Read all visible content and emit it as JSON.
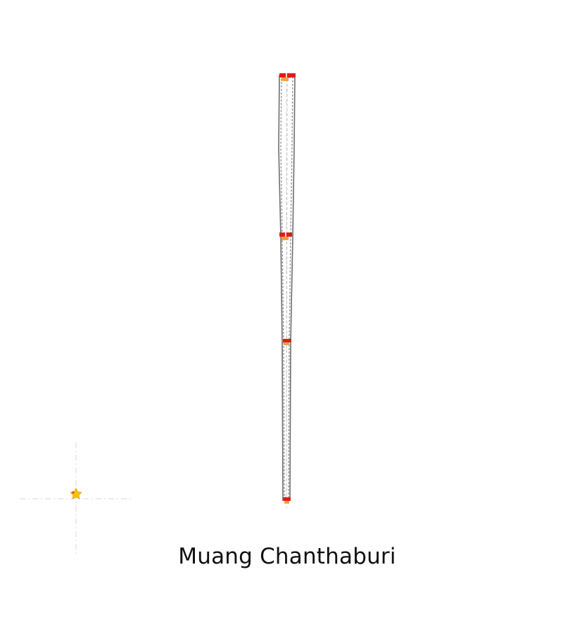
{
  "map": {
    "place_name": "Muang Chanthaburi"
  },
  "legend": {
    "icon": "locator-star-icon"
  },
  "colors": {
    "route_outline": "#6e6e6e",
    "route_dash": "#9a9a9a",
    "guide_line": "#d8d8d8",
    "stop_red": "#e41a1a",
    "stop_orange": "#f0a040",
    "locator_star": "#f5c400",
    "locator_accent": "#e4402a"
  }
}
